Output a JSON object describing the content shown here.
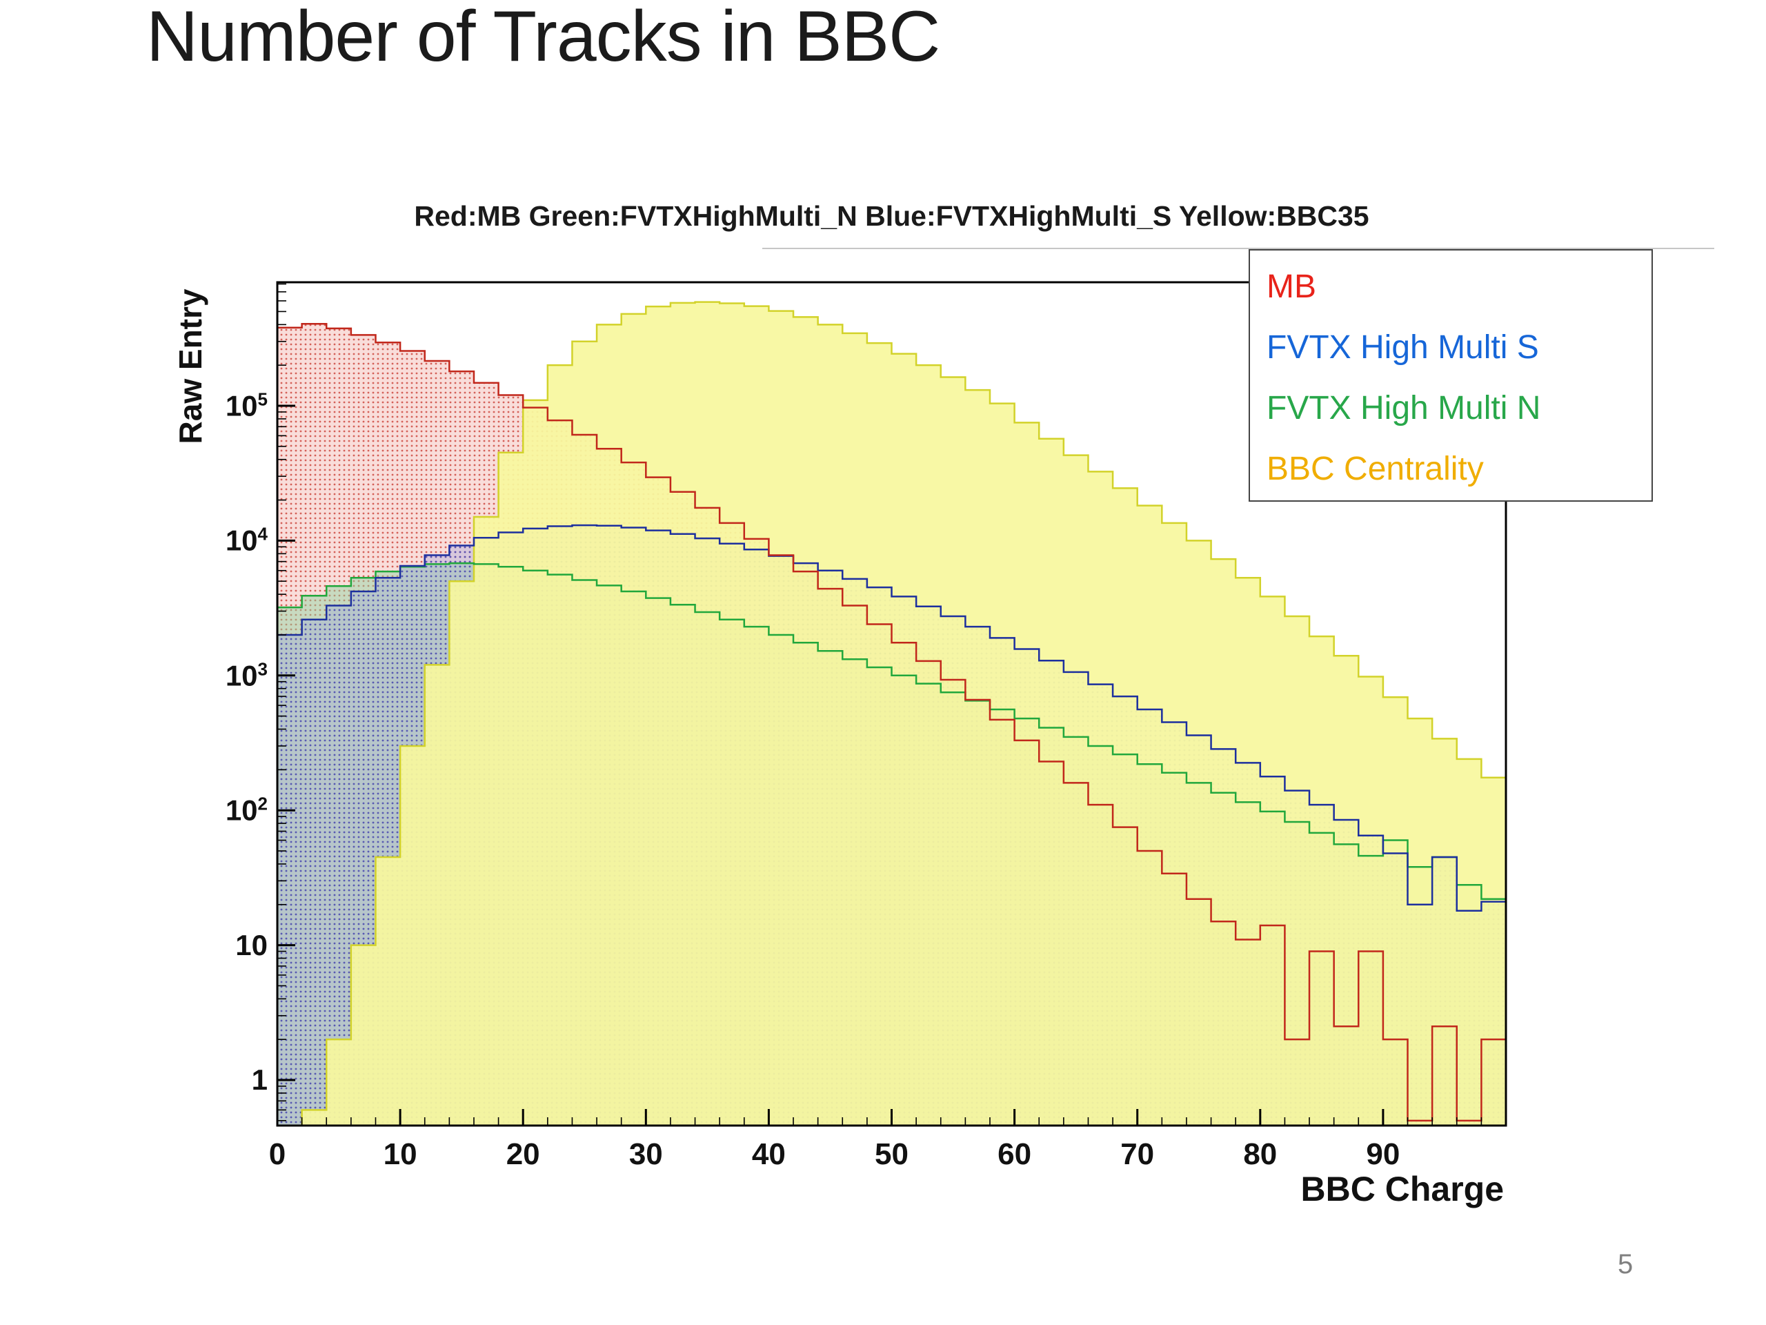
{
  "slide": {
    "title": "Number of Tracks in BBC",
    "page_number": "5"
  },
  "legend": {
    "items": [
      {
        "label": "MB",
        "color": "#e8231a"
      },
      {
        "label": "FVTX High Multi S",
        "color": "#1666d8"
      },
      {
        "label": "FVTX High Multi N",
        "color": "#28a74a"
      },
      {
        "label": "BBC Centrality",
        "color": "#f0ad00"
      }
    ]
  },
  "chart_data": {
    "type": "line",
    "subtype": "step-histogram",
    "title": "Red:MB Green:FVTXHighMulti_N Blue:FVTXHighMulti_S Yellow:BBC35",
    "xlabel": "BBC Charge",
    "ylabel": "Raw Entry",
    "yscale": "log",
    "xlim": [
      0,
      100
    ],
    "ylim": [
      0.46,
      830000
    ],
    "x_start": 0,
    "bin_width": 2,
    "xticks": [
      "0",
      "10",
      "20",
      "30",
      "40",
      "50",
      "60",
      "70",
      "80",
      "90"
    ],
    "yticks": [
      {
        "value": 1,
        "base": "1",
        "exp": ""
      },
      {
        "value": 10,
        "base": "10",
        "exp": ""
      },
      {
        "value": 100,
        "base": "10",
        "exp": "2"
      },
      {
        "value": 1000,
        "base": "10",
        "exp": "3"
      },
      {
        "value": 10000,
        "base": "10",
        "exp": "4"
      },
      {
        "value": 100000,
        "base": "10",
        "exp": "5"
      }
    ],
    "series": [
      {
        "name": "MB",
        "line_color": "#c1271b",
        "dots": true,
        "fill_dot": "rgba(200,55,45,0.75)",
        "fill_bg": "rgba(236,150,140,0.32)",
        "values": [
          380000,
          405000,
          375000,
          335000,
          295000,
          255000,
          215000,
          180000,
          148000,
          120000,
          97000,
          78000,
          61000,
          48000,
          38000,
          29500,
          23000,
          17500,
          13500,
          10300,
          7800,
          5900,
          4400,
          3300,
          2400,
          1750,
          1280,
          930,
          660,
          470,
          330,
          230,
          160,
          110,
          75,
          50,
          34,
          22,
          15,
          11,
          14,
          2,
          9,
          2.5,
          9,
          2,
          0.5,
          2.5,
          0.5,
          2
        ]
      },
      {
        "name": "FVTX High Multi S",
        "line_color": "#1c2f9e",
        "dots": true,
        "fill_dot": "rgba(60,70,190,0.75)",
        "fill_bg": "rgba(145,155,225,0.32)",
        "values": [
          2000,
          2600,
          3300,
          4200,
          5300,
          6500,
          7800,
          9200,
          10500,
          11500,
          12300,
          12800,
          13000,
          12900,
          12500,
          11900,
          11200,
          10400,
          9500,
          8600,
          7700,
          6800,
          6000,
          5200,
          4500,
          3850,
          3250,
          2750,
          2300,
          1900,
          1570,
          1290,
          1060,
          860,
          700,
          560,
          450,
          360,
          285,
          225,
          178,
          140,
          110,
          85,
          65,
          48,
          20,
          45,
          18,
          21
        ]
      },
      {
        "name": "FVTX High Multi N",
        "line_color": "#21a73c",
        "dots": false,
        "fill_solid": "rgba(140,215,160,0.45)",
        "values": [
          3200,
          3900,
          4600,
          5300,
          5900,
          6400,
          6700,
          6800,
          6700,
          6400,
          6000,
          5600,
          5100,
          4650,
          4200,
          3750,
          3350,
          2950,
          2600,
          2300,
          2000,
          1750,
          1520,
          1320,
          1150,
          1000,
          870,
          750,
          650,
          560,
          480,
          410,
          350,
          300,
          260,
          220,
          190,
          160,
          135,
          115,
          98,
          82,
          68,
          56,
          46,
          60,
          38,
          45,
          28,
          22
        ]
      },
      {
        "name": "BBC Centrality",
        "line_color": "#d2d22a",
        "dots": false,
        "fill_solid": "rgba(247,247,158,0.93)",
        "values": [
          0,
          0.6,
          2,
          10,
          45,
          300,
          1200,
          5000,
          15000,
          45000,
          110000,
          200000,
          300000,
          400000,
          480000,
          545000,
          580000,
          588000,
          575000,
          548000,
          505000,
          455000,
          400000,
          345000,
          292000,
          243000,
          200000,
          163000,
          131000,
          104000,
          75000,
          57000,
          43000,
          32500,
          24500,
          18200,
          13500,
          10000,
          7300,
          5300,
          3850,
          2750,
          1950,
          1400,
          980,
          690,
          480,
          340,
          240,
          175
        ]
      }
    ]
  }
}
